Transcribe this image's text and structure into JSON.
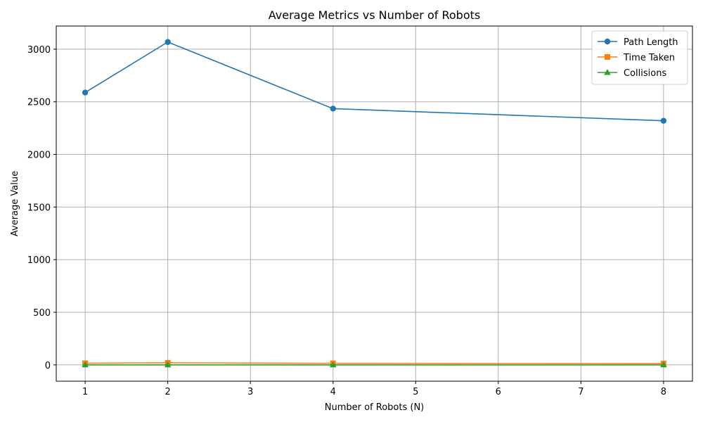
{
  "chart_data": {
    "type": "line",
    "title": "Average Metrics vs Number of Robots",
    "xlabel": "Number of Robots (N)",
    "ylabel": "Average Value",
    "x": [
      1,
      2,
      4,
      8
    ],
    "xlim": [
      0.65,
      8.35
    ],
    "ylim": [
      -155,
      3220
    ],
    "xticks": [
      1,
      2,
      3,
      4,
      5,
      6,
      7,
      8
    ],
    "yticks": [
      0,
      500,
      1000,
      1500,
      2000,
      2500,
      3000
    ],
    "grid": true,
    "legend_position": "top-right",
    "series": [
      {
        "name": "Path Length",
        "values": [
          2588,
          3068,
          2435,
          2320
        ],
        "color": "#1f77b4",
        "marker": "circle"
      },
      {
        "name": "Time Taken",
        "values": [
          16,
          20,
          15,
          13
        ],
        "color": "#ff7f0e",
        "marker": "square"
      },
      {
        "name": "Collisions",
        "values": [
          0,
          0,
          0,
          0
        ],
        "color": "#2ca02c",
        "marker": "triangle"
      }
    ]
  }
}
